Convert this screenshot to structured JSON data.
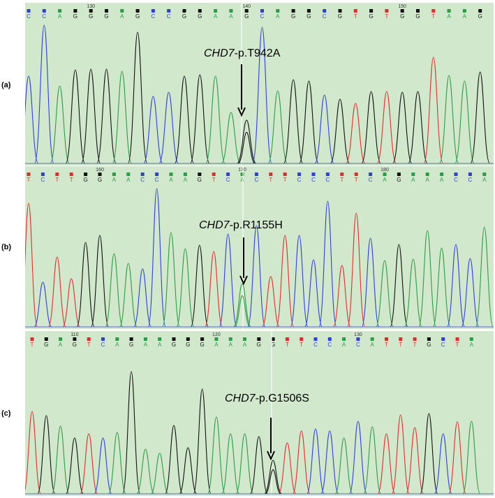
{
  "panels": [
    {
      "letter": "(a)",
      "gene": "CHD7",
      "variant": "-p.T942A",
      "ticks": [
        "130",
        "140",
        "150"
      ],
      "bases": "CCAGGGAGCCGGAAGCAGGCGTGTGGTAAG"
    },
    {
      "letter": "(b)",
      "gene": "CHD7",
      "variant": "-p.R1155H",
      "ticks": [
        "160",
        "170",
        "180"
      ],
      "bases": "TCTTGGAACCAAGTCACTTCCCTTCAGAAACCA"
    },
    {
      "letter": "(c)",
      "gene": "CHD7",
      "variant": "-p.G1506S",
      "ticks": [
        "110",
        "120",
        "130"
      ],
      "bases": "TGAGTCAGAAGGGAAAGGTTCCACATTTGCTA"
    }
  ],
  "colors": {
    "background": "#d2e8cc",
    "A": "#2e9b48",
    "C": "#2f3fd8",
    "G": "#111111",
    "T": "#e02c2c",
    "cursor": "#ffffff"
  }
}
